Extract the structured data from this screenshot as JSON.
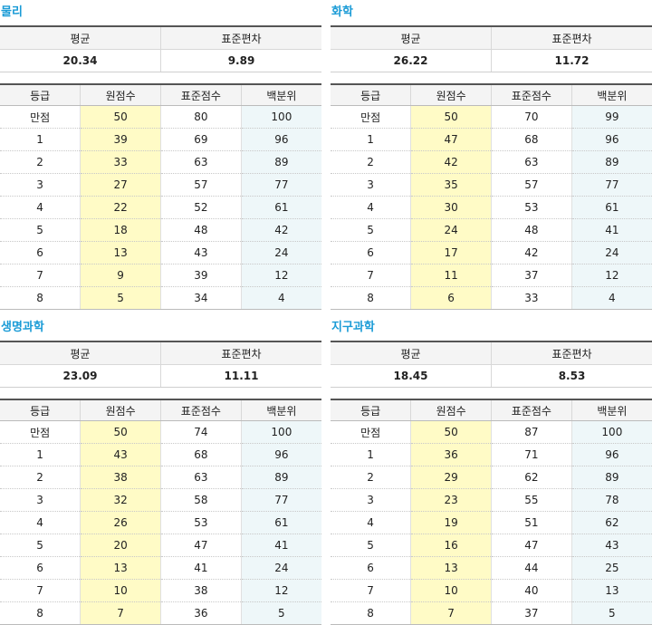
{
  "labels": {
    "mean": "평균",
    "std": "표준편차",
    "grade": "등급",
    "raw": "원점수",
    "standard": "표준점수",
    "percentile": "백분위"
  },
  "subjects": [
    {
      "name": "물리",
      "mean": "20.34",
      "std": "9.89",
      "rows": [
        [
          "만점",
          "50",
          "80",
          "100"
        ],
        [
          "1",
          "39",
          "69",
          "96"
        ],
        [
          "2",
          "33",
          "63",
          "89"
        ],
        [
          "3",
          "27",
          "57",
          "77"
        ],
        [
          "4",
          "22",
          "52",
          "61"
        ],
        [
          "5",
          "18",
          "48",
          "42"
        ],
        [
          "6",
          "13",
          "43",
          "24"
        ],
        [
          "7",
          "9",
          "39",
          "12"
        ],
        [
          "8",
          "5",
          "34",
          "4"
        ]
      ]
    },
    {
      "name": "화학",
      "mean": "26.22",
      "std": "11.72",
      "rows": [
        [
          "만점",
          "50",
          "70",
          "99"
        ],
        [
          "1",
          "47",
          "68",
          "96"
        ],
        [
          "2",
          "42",
          "63",
          "89"
        ],
        [
          "3",
          "35",
          "57",
          "77"
        ],
        [
          "4",
          "30",
          "53",
          "61"
        ],
        [
          "5",
          "24",
          "48",
          "41"
        ],
        [
          "6",
          "17",
          "42",
          "24"
        ],
        [
          "7",
          "11",
          "37",
          "12"
        ],
        [
          "8",
          "6",
          "33",
          "4"
        ]
      ]
    },
    {
      "name": "생명과학",
      "mean": "23.09",
      "std": "11.11",
      "rows": [
        [
          "만점",
          "50",
          "74",
          "100"
        ],
        [
          "1",
          "43",
          "68",
          "96"
        ],
        [
          "2",
          "38",
          "63",
          "89"
        ],
        [
          "3",
          "32",
          "58",
          "77"
        ],
        [
          "4",
          "26",
          "53",
          "61"
        ],
        [
          "5",
          "20",
          "47",
          "41"
        ],
        [
          "6",
          "13",
          "41",
          "24"
        ],
        [
          "7",
          "10",
          "38",
          "12"
        ],
        [
          "8",
          "7",
          "36",
          "5"
        ]
      ]
    },
    {
      "name": "지구과학",
      "mean": "18.45",
      "std": "8.53",
      "rows": [
        [
          "만점",
          "50",
          "87",
          "100"
        ],
        [
          "1",
          "36",
          "71",
          "96"
        ],
        [
          "2",
          "29",
          "62",
          "89"
        ],
        [
          "3",
          "23",
          "55",
          "78"
        ],
        [
          "4",
          "19",
          "51",
          "62"
        ],
        [
          "5",
          "16",
          "47",
          "43"
        ],
        [
          "6",
          "13",
          "44",
          "25"
        ],
        [
          "7",
          "10",
          "40",
          "13"
        ],
        [
          "8",
          "7",
          "37",
          "5"
        ]
      ]
    }
  ]
}
